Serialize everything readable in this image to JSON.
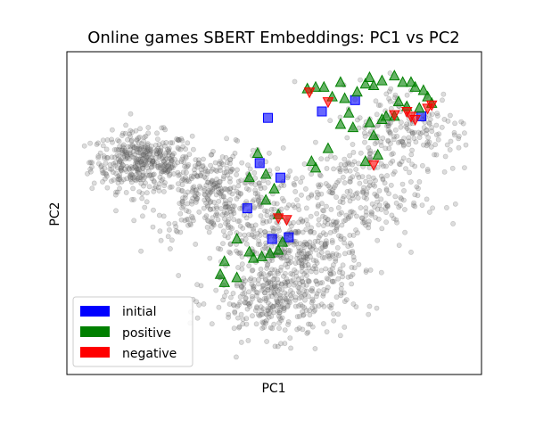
{
  "chart_data": {
    "type": "scatter",
    "title": "Online games SBERT Embeddings: PC1 vs PC2",
    "xlabel": "PC1",
    "ylabel": "PC2",
    "xlim": [
      0,
      100
    ],
    "ylim": [
      0,
      100
    ],
    "grid": false,
    "legend_position": "lower-left",
    "background_cloud": {
      "description_free": true,
      "color": "#808080",
      "clusters": [
        {
          "cx": 18,
          "cy": 66,
          "sx": 6,
          "sy": 4.5,
          "n": 420
        },
        {
          "cx": 36,
          "cy": 56,
          "sx": 8,
          "sy": 7,
          "n": 380
        },
        {
          "cx": 55,
          "cy": 38,
          "sx": 8,
          "sy": 6,
          "n": 320
        },
        {
          "cx": 51,
          "cy": 23,
          "sx": 8,
          "sy": 6,
          "n": 330
        },
        {
          "cx": 68,
          "cy": 55,
          "sx": 9,
          "sy": 8,
          "n": 260
        },
        {
          "cx": 82,
          "cy": 76,
          "sx": 8,
          "sy": 7,
          "n": 200
        }
      ]
    },
    "series": [
      {
        "name": "initial",
        "color": "#0000ff",
        "marker": "square",
        "points": [
          [
            48.5,
            79.5
          ],
          [
            46.5,
            65.5
          ],
          [
            51.5,
            61
          ],
          [
            43.5,
            51.5
          ],
          [
            49.5,
            42
          ],
          [
            53.5,
            42.5
          ],
          [
            61.5,
            81.5
          ],
          [
            69.5,
            85
          ],
          [
            85.5,
            80
          ]
        ]
      },
      {
        "name": "positive",
        "color": "#008000",
        "marker": "triangle-up",
        "points": [
          [
            58,
            88.5
          ],
          [
            60,
            89
          ],
          [
            62,
            89
          ],
          [
            64,
            86
          ],
          [
            67,
            85.5
          ],
          [
            66,
            90.5
          ],
          [
            70,
            87.5
          ],
          [
            72,
            90
          ],
          [
            73,
            92
          ],
          [
            74,
            89.5
          ],
          [
            76,
            91
          ],
          [
            79,
            92.5
          ],
          [
            81,
            90.5
          ],
          [
            83,
            90.5
          ],
          [
            84,
            89
          ],
          [
            86,
            88
          ],
          [
            88,
            84
          ],
          [
            87,
            86
          ],
          [
            85,
            82.5
          ],
          [
            82,
            83
          ],
          [
            79,
            80
          ],
          [
            76,
            79
          ],
          [
            73,
            78
          ],
          [
            68,
            81
          ],
          [
            66,
            77.5
          ],
          [
            69,
            76.5
          ],
          [
            77,
            80
          ],
          [
            74,
            74
          ],
          [
            72,
            66
          ],
          [
            75,
            68
          ],
          [
            63,
            70
          ],
          [
            59,
            66
          ],
          [
            60,
            64
          ],
          [
            46,
            68.5
          ],
          [
            44,
            61
          ],
          [
            48,
            62
          ],
          [
            50,
            57.5
          ],
          [
            48,
            54
          ],
          [
            51,
            49.5
          ],
          [
            52,
            41
          ],
          [
            51,
            38.5
          ],
          [
            49,
            37.5
          ],
          [
            44,
            38
          ],
          [
            41,
            42
          ],
          [
            38,
            35
          ],
          [
            41,
            30
          ],
          [
            37,
            31
          ],
          [
            38,
            28.5
          ],
          [
            45,
            36
          ],
          [
            47,
            36.5
          ],
          [
            80,
            84.5
          ]
        ]
      },
      {
        "name": "negative",
        "color": "#ff0000",
        "marker": "triangle-down",
        "points": [
          [
            58.5,
            87.5
          ],
          [
            63,
            84.5
          ],
          [
            79,
            80.5
          ],
          [
            82,
            81.5
          ],
          [
            83,
            80
          ],
          [
            84,
            79
          ],
          [
            87,
            82.5
          ],
          [
            88,
            83.5
          ],
          [
            74,
            65
          ],
          [
            53,
            48
          ],
          [
            51,
            48.5
          ]
        ]
      }
    ]
  },
  "legend": {
    "items": [
      {
        "label": "initial",
        "color": "#0000ff"
      },
      {
        "label": "positive",
        "color": "#008000"
      },
      {
        "label": "negative",
        "color": "#ff0000"
      }
    ]
  }
}
